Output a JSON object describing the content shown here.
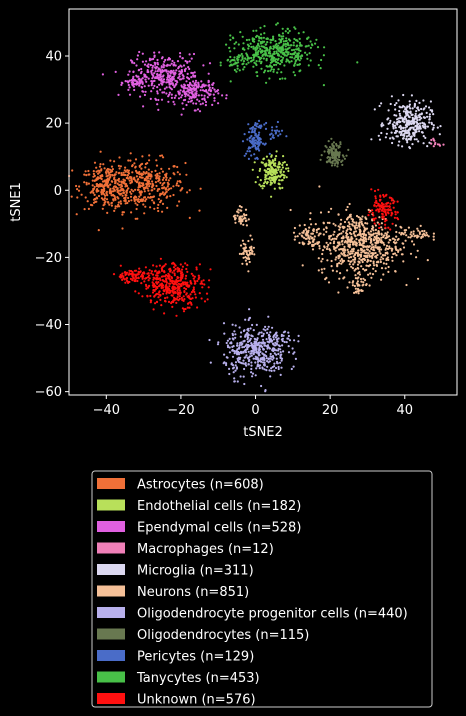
{
  "chart_data": {
    "type": "scatter",
    "title": "",
    "xlabel": "tSNE2",
    "ylabel": "tSNE1",
    "xlim": [
      -50,
      54
    ],
    "ylim": [
      -61,
      54
    ],
    "xticks": [
      -40,
      -20,
      0,
      20,
      40
    ],
    "yticks": [
      -60,
      -40,
      -20,
      0,
      20,
      40
    ],
    "xtick_labels": [
      "−40",
      "−20",
      "0",
      "20",
      "40"
    ],
    "ytick_labels": [
      "−60",
      "−40",
      "−20",
      "0",
      "20",
      "40"
    ],
    "grid": false,
    "legend_position": "below",
    "background": "#000000",
    "foreground": "#ffffff",
    "series": [
      {
        "name": "Astrocytes (n=608)",
        "color": "#f07038",
        "n": 608,
        "clusters": [
          {
            "cx": -30,
            "cy": 1.5,
            "sx": 5.5,
            "sy": 3.8,
            "w": 0.6
          },
          {
            "cx": -40,
            "cy": 1,
            "sx": 3.5,
            "sy": 3.2,
            "w": 0.4
          }
        ]
      },
      {
        "name": "Endothelial cells (n=182)",
        "color": "#b8e05a",
        "n": 182,
        "clusters": [
          {
            "cx": 4.5,
            "cy": 5.5,
            "sx": 1.8,
            "sy": 2.6,
            "w": 1
          }
        ]
      },
      {
        "name": "Ependymal cells (n=528)",
        "color": "#e060e0",
        "n": 528,
        "clusters": [
          {
            "cx": -24,
            "cy": 34,
            "sx": 4.5,
            "sy": 3.2,
            "w": 0.6
          },
          {
            "cx": -16,
            "cy": 29,
            "sx": 3,
            "sy": 2.2,
            "w": 0.3
          },
          {
            "cx": -32,
            "cy": 32,
            "sx": 1.5,
            "sy": 1,
            "w": 0.1
          }
        ]
      },
      {
        "name": "Macrophages (n=12)",
        "color": "#f080b8",
        "n": 12,
        "clusters": [
          {
            "cx": 48,
            "cy": 14,
            "sx": 0.8,
            "sy": 1,
            "w": 1
          }
        ]
      },
      {
        "name": "Microglia (n=311)",
        "color": "#dcd8f0",
        "n": 311,
        "clusters": [
          {
            "cx": 41,
            "cy": 20,
            "sx": 3,
            "sy": 3.2,
            "w": 1
          }
        ]
      },
      {
        "name": "Neurons (n=851)",
        "color": "#f5c098",
        "n": 851,
        "clusters": [
          {
            "cx": 28,
            "cy": -16,
            "sx": 5.5,
            "sy": 4.8,
            "w": 0.72
          },
          {
            "cx": 14,
            "cy": -14,
            "sx": 2,
            "sy": 2,
            "w": 0.08
          },
          {
            "cx": 43,
            "cy": -13,
            "sx": 2,
            "sy": 1,
            "w": 0.05
          },
          {
            "cx": -4,
            "cy": -8,
            "sx": 1,
            "sy": 1.5,
            "w": 0.05
          },
          {
            "cx": -2,
            "cy": -18,
            "sx": 1,
            "sy": 2,
            "w": 0.06
          },
          {
            "cx": 28,
            "cy": -28,
            "sx": 1,
            "sy": 1.5,
            "w": 0.04
          }
        ]
      },
      {
        "name": "Oligodendrocyte progenitor cells (n=440)",
        "color": "#b8b0ec",
        "n": 440,
        "clusters": [
          {
            "cx": 0,
            "cy": -48,
            "sx": 4.2,
            "sy": 3.8,
            "w": 0.94
          },
          {
            "cx": 7,
            "cy": -44,
            "sx": 2,
            "sy": 1.5,
            "w": 0.06
          }
        ]
      },
      {
        "name": "Oligodendrocytes (n=115)",
        "color": "#687850",
        "n": 115,
        "clusters": [
          {
            "cx": 21,
            "cy": 11,
            "sx": 1.3,
            "sy": 1.7,
            "w": 1
          }
        ]
      },
      {
        "name": "Pericytes (n=129)",
        "color": "#4a6cc8",
        "n": 129,
        "clusters": [
          {
            "cx": 0,
            "cy": 15,
            "sx": 1.2,
            "sy": 2.4,
            "w": 0.85
          },
          {
            "cx": 5,
            "cy": 17,
            "sx": 1.2,
            "sy": 1.2,
            "w": 0.15
          }
        ]
      },
      {
        "name": "Tanycytes (n=453)",
        "color": "#48c048",
        "n": 453,
        "clusters": [
          {
            "cx": 5,
            "cy": 41,
            "sx": 5.2,
            "sy": 3.2,
            "w": 0.93
          },
          {
            "cx": -5,
            "cy": 38,
            "sx": 1.5,
            "sy": 1,
            "w": 0.07
          }
        ]
      },
      {
        "name": "Unknown (n=576)",
        "color": "#ff1010",
        "n": 576,
        "clusters": [
          {
            "cx": -22,
            "cy": -28,
            "sx": 4,
            "sy": 3.2,
            "w": 0.65
          },
          {
            "cx": -33,
            "cy": -25.5,
            "sx": 2.5,
            "sy": 1,
            "w": 0.15
          },
          {
            "cx": 34,
            "cy": -6,
            "sx": 2,
            "sy": 2.2,
            "w": 0.2
          }
        ]
      }
    ]
  }
}
